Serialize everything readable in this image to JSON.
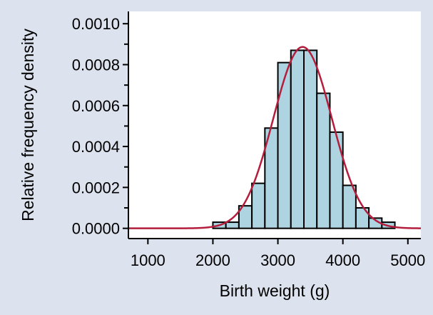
{
  "chart_data": {
    "type": "bar",
    "xlabel": "Birth weight (g)",
    "ylabel": "Relative frequency density",
    "xlim": [
      700,
      5200
    ],
    "ylim": [
      -5e-05,
      0.00106
    ],
    "x_ticks": [
      1000,
      2000,
      3000,
      4000,
      5000
    ],
    "x_tick_labels": [
      "1000",
      "2000",
      "3000",
      "4000",
      "5000"
    ],
    "y_ticks": [
      0,
      0.0002,
      0.0004,
      0.0006,
      0.0008,
      0.001
    ],
    "y_tick_labels": [
      "0.0000",
      "0.0002",
      "0.0004",
      "0.0006",
      "0.0008",
      "0.0010"
    ],
    "y_minor_ticks": [
      0.0001,
      0.0003,
      0.0005,
      0.0007,
      0.0009
    ],
    "grid": false,
    "bin_width": 200,
    "bins": [
      {
        "start": 2000,
        "end": 2200,
        "value": 3e-05
      },
      {
        "start": 2200,
        "end": 2400,
        "value": 3e-05
      },
      {
        "start": 2400,
        "end": 2600,
        "value": 0.00011
      },
      {
        "start": 2600,
        "end": 2800,
        "value": 0.00022
      },
      {
        "start": 2800,
        "end": 3000,
        "value": 0.00049
      },
      {
        "start": 3000,
        "end": 3200,
        "value": 0.00081
      },
      {
        "start": 3200,
        "end": 3400,
        "value": 0.00087
      },
      {
        "start": 3400,
        "end": 3600,
        "value": 0.00087
      },
      {
        "start": 3600,
        "end": 3800,
        "value": 0.00066
      },
      {
        "start": 3800,
        "end": 4000,
        "value": 0.00047
      },
      {
        "start": 4000,
        "end": 4200,
        "value": 0.00021
      },
      {
        "start": 4200,
        "end": 4400,
        "value": 0.0001
      },
      {
        "start": 4400,
        "end": 4600,
        "value": 5e-05
      },
      {
        "start": 4600,
        "end": 4800,
        "value": 3e-05
      }
    ],
    "overlay_curve": {
      "type": "normal_density",
      "mean": 3380,
      "sd": 450,
      "color": "#b41e3c"
    },
    "colors": {
      "bar_fill": "#aed4e2",
      "bar_stroke": "#000000",
      "plot_background": "#ffffff",
      "outer_background": "#dde3ee"
    }
  }
}
